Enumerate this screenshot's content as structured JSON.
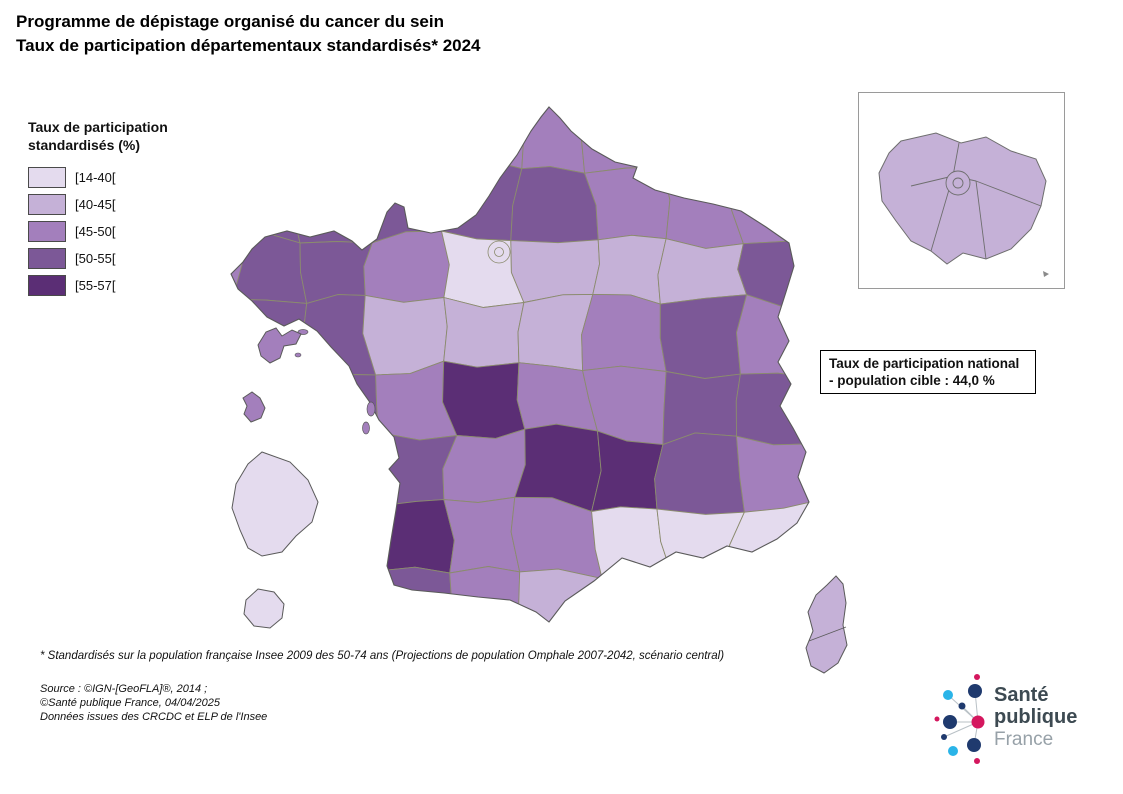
{
  "title": {
    "line1": "Programme de dépistage organisé du cancer du sein",
    "line2": "Taux de participation départementaux standardisés* 2024"
  },
  "legend": {
    "title_line1": "Taux de participation",
    "title_line2": "standardisés (%)",
    "classes": [
      {
        "label": "[14-40[",
        "color": "#E4DBEE"
      },
      {
        "label": "[40-45[",
        "color": "#C5B1D7"
      },
      {
        "label": "[45-50[",
        "color": "#A37FBC"
      },
      {
        "label": "[50-55[",
        "color": "#7C5897"
      },
      {
        "label": "[55-57[",
        "color": "#5B2E75"
      }
    ]
  },
  "national_box": {
    "line1": "Taux de participation national",
    "line2": "- population cible : 44,0 %"
  },
  "map": {
    "border_color": "#8b8b6e",
    "outline_color": "#5a5a5a",
    "grid_classes": [
      [
        3,
        3,
        3,
        3,
        3,
        3,
        3,
        3
      ],
      [
        4,
        4,
        4,
        4,
        4,
        3,
        3,
        3
      ],
      [
        4,
        4,
        3,
        1,
        2,
        2,
        2,
        4
      ],
      [
        4,
        4,
        2,
        2,
        2,
        3,
        4,
        3
      ],
      [
        4,
        4,
        3,
        5,
        3,
        3,
        4,
        4
      ],
      [
        4,
        4,
        4,
        3,
        5,
        5,
        4,
        3
      ],
      [
        5,
        5,
        5,
        3,
        3,
        1,
        1,
        1
      ],
      [
        4,
        4,
        4,
        3,
        2,
        1,
        1,
        1
      ]
    ],
    "corsica_class": 2,
    "overseas": [
      {
        "name": "guadeloupe",
        "class": 3
      },
      {
        "name": "martinique",
        "class": 3
      },
      {
        "name": "guyane",
        "class": 1
      },
      {
        "name": "reunion",
        "class": 1
      }
    ],
    "inset_class": 2
  },
  "footnote": "* Standardisés sur la population française Insee 2009 des 50-74 ans (Projections de population Omphale 2007-2042, scénario central)",
  "source": {
    "line1": "Source : ©IGN-[GeoFLA]®, 2014 ;",
    "line2": "©Santé publique France, 04/04/2025",
    "line3": "Données issues des CRCDC et ELP de l'Insee"
  },
  "logo": {
    "line1": "Santé",
    "line2": "publique",
    "line3": "France",
    "colors": {
      "navy": "#1f3a6e",
      "cyan": "#2ab4e8",
      "pink": "#d4175e",
      "text": "#3d4a52",
      "france": "#97a1a8",
      "link": "#b9c1c6"
    }
  }
}
